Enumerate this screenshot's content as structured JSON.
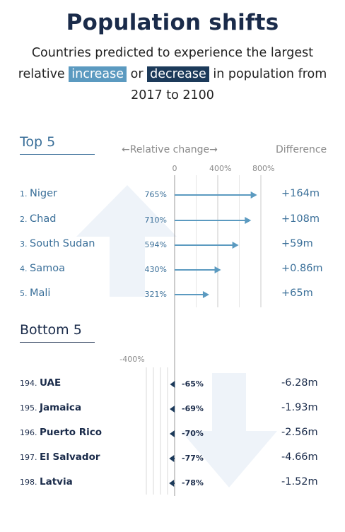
{
  "title": "Population shifts",
  "subtitle": {
    "line1": "Countries predicted to experience the largest",
    "line2_pre": "relative",
    "increase_word": "increase",
    "or_word": "or",
    "decrease_word": "decrease",
    "line2_post": "in population from",
    "line3": "2017 to 2100"
  },
  "colors": {
    "increase": "#5b9ac0",
    "decrease": "#1c3a5a",
    "bg_arrow": "#eef3f9"
  },
  "top_section_label": "Top 5",
  "bottom_section_label": "Bottom 5",
  "relative_change_header": "←Relative change→",
  "difference_header": "Difference",
  "chart_data": {
    "type": "bar",
    "title": "Population shifts",
    "xlabel": "Relative change",
    "top_ticks": [
      "0",
      "400%",
      "800%"
    ],
    "bottom_ticks": [
      "-400%"
    ],
    "top": [
      {
        "rank": "1.",
        "country": "Niger",
        "value": 765,
        "label": "765%",
        "difference": "+164m"
      },
      {
        "rank": "2.",
        "country": "Chad",
        "value": 710,
        "label": "710%",
        "difference": "+108m"
      },
      {
        "rank": "3.",
        "country": "South Sudan",
        "value": 594,
        "label": "594%",
        "difference": "+59m"
      },
      {
        "rank": "4.",
        "country": "Samoa",
        "value": 430,
        "label": "430%",
        "difference": "+0.86m"
      },
      {
        "rank": "5.",
        "country": "Mali",
        "value": 321,
        "label": "321%",
        "difference": "+65m"
      }
    ],
    "bottom": [
      {
        "rank": "194.",
        "country": "UAE",
        "value": -65,
        "label": "-65%",
        "difference": "-6.28m"
      },
      {
        "rank": "195.",
        "country": "Jamaica",
        "value": -69,
        "label": "-69%",
        "difference": "-1.93m"
      },
      {
        "rank": "196.",
        "country": "Puerto Rico",
        "value": -70,
        "label": "-70%",
        "difference": "-2.56m"
      },
      {
        "rank": "197.",
        "country": "El Salvador",
        "value": -77,
        "label": "-77%",
        "difference": "-4.66m"
      },
      {
        "rank": "198.",
        "country": "Latvia",
        "value": -78,
        "label": "-78%",
        "difference": "-1.52m"
      }
    ]
  }
}
